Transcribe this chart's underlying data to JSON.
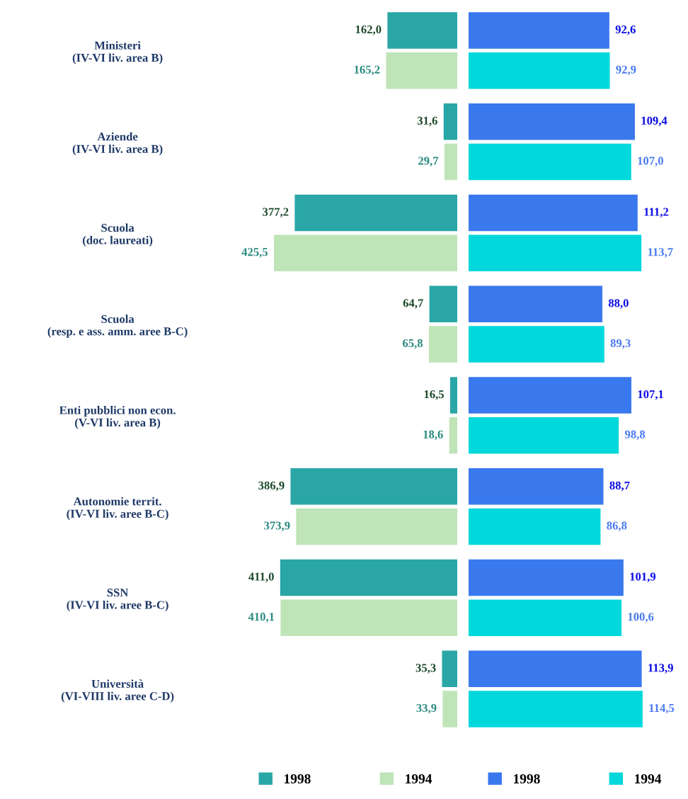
{
  "chart_data": [
    {
      "type": "bar",
      "orientation": "horizontal",
      "categories": [
        "Ministeri\n(IV-VI liv. area B)",
        "Aziende\n(IV-VI liv. area B)",
        "Scuola\n(doc. laureati)",
        "Scuola\n(resp. e ass. amm. aree B-C)",
        "Enti pubblici non econ.\n(V-VI liv. area B)",
        "Autonomie territ.\n(IV-VI liv. aree B-C)",
        "SSN\n(IV-VI liv. aree B-C)",
        "Università\n(VI-VIII liv. aree C-D)"
      ],
      "series": [
        {
          "name": "1998",
          "color": "#2aa6a6",
          "values": [
            162.0,
            31.6,
            377.2,
            64.7,
            16.5,
            386.9,
            411.0,
            35.3
          ],
          "value_labels": [
            "162,0",
            "31,6",
            "377,2",
            "64,7",
            "16,5",
            "386,9",
            "411,0",
            "35,3"
          ]
        },
        {
          "name": "1994",
          "color": "#bfe4b8",
          "values": [
            165.2,
            29.7,
            425.5,
            65.8,
            18.6,
            373.9,
            410.1,
            33.9
          ],
          "value_labels": [
            "165,2",
            "29,7",
            "425,5",
            "65,8",
            "18,6",
            "373,9",
            "410,1",
            "33,9"
          ]
        }
      ],
      "tick_labels": "y",
      "legend": "bottom",
      "grid": false
    },
    {
      "type": "bar",
      "orientation": "horizontal",
      "categories": [
        null,
        null,
        null,
        null,
        null,
        null,
        null,
        null
      ],
      "series": [
        {
          "name": "1998",
          "color": "#3a78ee",
          "values": [
            92.6,
            109.4,
            111.2,
            88.0,
            107.1,
            88.7,
            101.9,
            113.9
          ],
          "value_labels": [
            "92,6",
            "109,4",
            "111,2",
            "88,0",
            "107,1",
            "88,7",
            "101,9",
            "113,9"
          ]
        },
        {
          "name": "1994",
          "color": "#00d8dc",
          "values": [
            92.9,
            107.0,
            113.7,
            89.3,
            98.8,
            86.8,
            100.6,
            114.5
          ],
          "value_labels": [
            "92,9",
            "107,0",
            "113,7",
            "89,3",
            "98,8",
            "86,8",
            "100,6",
            "114,5"
          ]
        }
      ],
      "tick_labels": false,
      "legend": "bottom",
      "grid": false
    }
  ]
}
